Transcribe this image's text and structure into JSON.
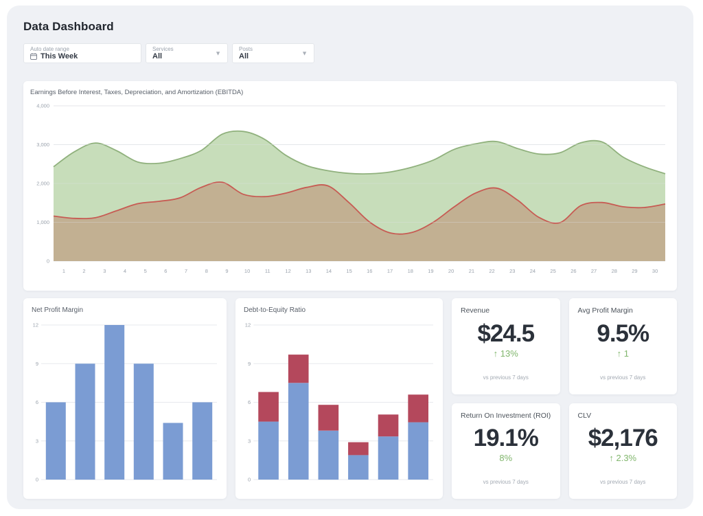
{
  "page": {
    "title": "Data Dashboard"
  },
  "filters": [
    {
      "label": "Auto date range",
      "value": "This Week",
      "icon": "calendar-icon"
    },
    {
      "label": "Services",
      "value": "All",
      "icon": "chevron-down-icon"
    },
    {
      "label": "Posts",
      "value": "All",
      "icon": "chevron-down-icon"
    }
  ],
  "colors": {
    "panel_bg": "#eff1f5",
    "green_line": "#90b17d",
    "green_fill": "#c7ddba",
    "red_line": "#c75b53",
    "tan_fill": "#c2b092",
    "bar_blue": "#7b9cd3",
    "bar_red": "#b4485c",
    "delta_green": "#80b66c"
  },
  "chart_data": [
    {
      "type": "area",
      "title": "Earnings Before Interest, Taxes, Depreciation, and Amortization (EBITDA)",
      "x": [
        "1",
        "2",
        "3",
        "4",
        "5",
        "6",
        "7",
        "8",
        "9",
        "10",
        "11",
        "12",
        "13",
        "14",
        "15",
        "16",
        "17",
        "18",
        "19",
        "20",
        "21",
        "22",
        "23",
        "24",
        "25",
        "26",
        "27",
        "28",
        "29",
        "30"
      ],
      "ylim": [
        0,
        4000
      ],
      "yticks": [
        {
          "v": 0,
          "label": "0"
        },
        {
          "v": 1000,
          "label": "1,000"
        },
        {
          "v": 2000,
          "label": "2,000"
        },
        {
          "v": 3000,
          "label": "3,000"
        },
        {
          "v": 4000,
          "label": "4,000"
        }
      ],
      "grid": true,
      "legend": "none",
      "series": [
        {
          "name": "upper-green-series",
          "color": "#90b17d",
          "fill": "#c7ddba",
          "values": [
            2430,
            2820,
            3040,
            2840,
            2550,
            2520,
            2640,
            2850,
            3270,
            3340,
            3140,
            2730,
            2460,
            2330,
            2260,
            2250,
            2300,
            2420,
            2600,
            2880,
            3020,
            3080,
            2900,
            2760,
            2790,
            3050,
            3070,
            2680,
            2430,
            2250
          ]
        },
        {
          "name": "lower-red-series",
          "color": "#c75b53",
          "fill": "#c2b092",
          "values": [
            1160,
            1100,
            1120,
            1300,
            1480,
            1540,
            1630,
            1900,
            2030,
            1720,
            1660,
            1750,
            1900,
            1940,
            1510,
            1000,
            720,
            740,
            1000,
            1400,
            1750,
            1880,
            1570,
            1130,
            990,
            1430,
            1510,
            1400,
            1380,
            1470
          ]
        }
      ]
    },
    {
      "type": "bar",
      "title": "Net Profit Margin",
      "ylim": [
        0,
        12
      ],
      "yticks": [
        {
          "v": 0,
          "label": "0"
        },
        {
          "v": 3,
          "label": "3"
        },
        {
          "v": 6,
          "label": "6"
        },
        {
          "v": 9,
          "label": "9"
        },
        {
          "v": 12,
          "label": "12"
        }
      ],
      "grid": true,
      "legend": "none",
      "series": [
        {
          "name": "net-profit-margin",
          "color": "#7b9cd3",
          "values": [
            6,
            9,
            12,
            9,
            4.4,
            6
          ]
        }
      ]
    },
    {
      "type": "bar-stacked",
      "title": "Debt-to-Equity Ratio",
      "ylim": [
        0,
        12
      ],
      "yticks": [
        {
          "v": 0,
          "label": "0"
        },
        {
          "v": 3,
          "label": "3"
        },
        {
          "v": 6,
          "label": "6"
        },
        {
          "v": 9,
          "label": "9"
        },
        {
          "v": 12,
          "label": "12"
        }
      ],
      "grid": true,
      "legend": "none",
      "series": [
        {
          "name": "equity-blue-segment",
          "color": "#7b9cd3",
          "values": [
            4.5,
            7.5,
            3.8,
            1.9,
            3.35,
            4.45
          ]
        },
        {
          "name": "debt-red-segment",
          "color": "#b4485c",
          "values": [
            2.3,
            2.2,
            2.0,
            1.0,
            1.7,
            2.15
          ]
        }
      ]
    }
  ],
  "kpis": [
    {
      "title": "Revenue",
      "value": "$24.5",
      "delta": "↑ 13%",
      "note": "vs previous 7 days"
    },
    {
      "title": "Avg Profit Margin",
      "value": "9.5%",
      "delta": "↑ 1",
      "note": "vs previous 7 days"
    },
    {
      "title": "Return On Investment (ROI)",
      "value": "19.1%",
      "delta": "8%",
      "note": "vs previous 7 days"
    },
    {
      "title": "CLV",
      "value": "$2,176",
      "delta": "↑ 2.3%",
      "note": "vs previous 7 days"
    }
  ]
}
